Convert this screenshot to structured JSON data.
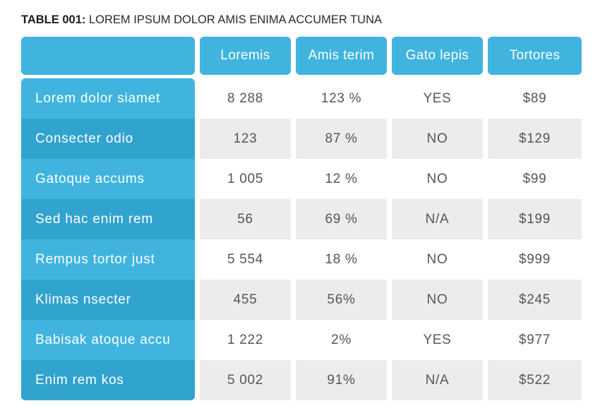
{
  "title": {
    "prefix": "TABLE 001:",
    "text": "LOREM IPSUM DOLOR AMIS ENIMA ACCUMER TUNA"
  },
  "table": {
    "columns": [
      "Loremis",
      "Amis terim",
      "Gato lepis",
      "Tortores"
    ],
    "rows": [
      {
        "label": "Lorem dolor siamet",
        "values": [
          "8 288",
          "123 %",
          "YES",
          "$89"
        ]
      },
      {
        "label": "Consecter odio",
        "values": [
          "123",
          "87 %",
          "NO",
          "$129"
        ]
      },
      {
        "label": "Gatoque accums",
        "values": [
          "1 005",
          "12 %",
          "NO",
          "$99"
        ]
      },
      {
        "label": "Sed hac enim rem",
        "values": [
          "56",
          "69 %",
          "N/A",
          "$199"
        ]
      },
      {
        "label": "Rempus tortor just",
        "values": [
          "5 554",
          "18 %",
          "NO",
          "$999"
        ]
      },
      {
        "label": "Klimas nsecter",
        "values": [
          "455",
          "56%",
          "NO",
          "$245"
        ]
      },
      {
        "label": "Babisak atoque accu",
        "values": [
          "1 222",
          "2%",
          "YES",
          "$977"
        ]
      },
      {
        "label": "Enim rem kos",
        "values": [
          "5 002",
          "91%",
          "N/A",
          "$522"
        ]
      }
    ]
  },
  "colors": {
    "header_blue": "#40b4df",
    "row_blue_light": "#40b4df",
    "row_blue_dark": "#31a3cf",
    "zebra_gray": "#ececec",
    "data_text": "#55565a",
    "title_text": "#1d1b1c"
  }
}
